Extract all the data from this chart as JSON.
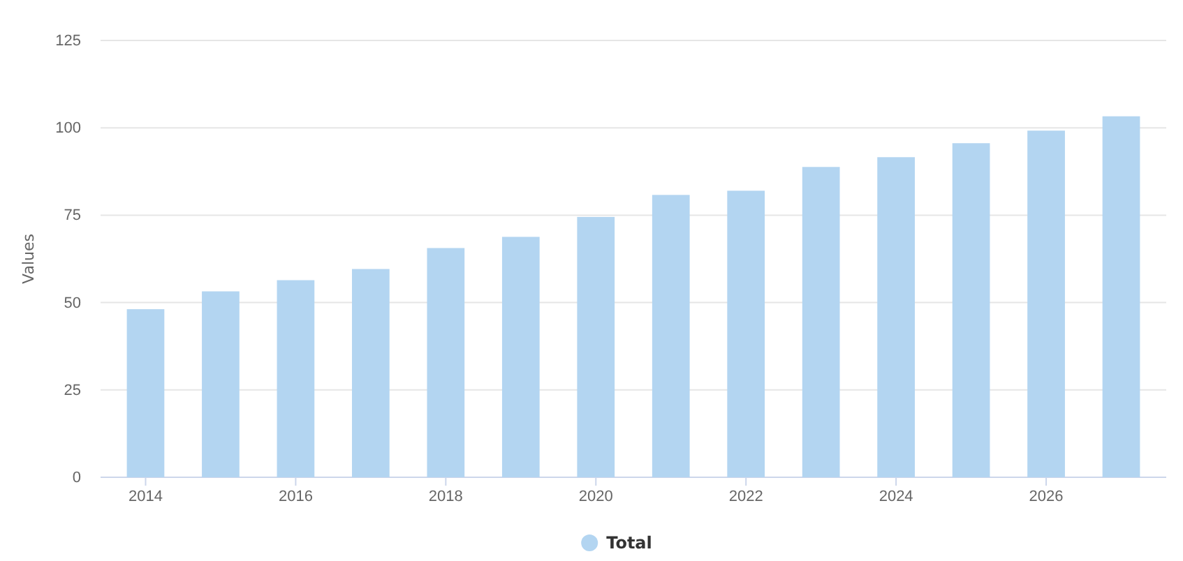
{
  "chart_data": {
    "type": "bar",
    "ylabel": "Values",
    "x": [
      2014,
      2015,
      2016,
      2017,
      2018,
      2019,
      2020,
      2021,
      2022,
      2023,
      2024,
      2025,
      2026,
      2027
    ],
    "series": [
      {
        "name": "Total",
        "color": "#b3d5f1",
        "values": [
          48.1,
          53.2,
          56.4,
          59.6,
          65.6,
          68.8,
          74.5,
          80.8,
          82,
          88.8,
          91.6,
          95.6,
          99.2,
          103.3
        ]
      }
    ],
    "xlim": [
      2013.4,
      2027.6
    ],
    "xticks": [
      2014,
      2016,
      2018,
      2020,
      2022,
      2024,
      2026
    ],
    "ylim": [
      0,
      125
    ],
    "yticks": [
      0,
      25,
      50,
      75,
      100,
      125
    ],
    "grid": "y",
    "legend": "bottom"
  }
}
